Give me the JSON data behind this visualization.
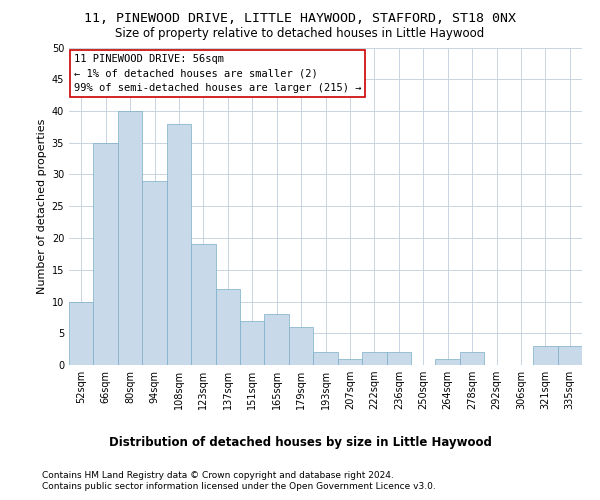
{
  "title_line1": "11, PINEWOOD DRIVE, LITTLE HAYWOOD, STAFFORD, ST18 0NX",
  "title_line2": "Size of property relative to detached houses in Little Haywood",
  "xlabel": "Distribution of detached houses by size in Little Haywood",
  "ylabel": "Number of detached properties",
  "footer_line1": "Contains HM Land Registry data © Crown copyright and database right 2024.",
  "footer_line2": "Contains public sector information licensed under the Open Government Licence v3.0.",
  "annotation_title": "11 PINEWOOD DRIVE: 56sqm",
  "annotation_line1": "← 1% of detached houses are smaller (2)",
  "annotation_line2": "99% of semi-detached houses are larger (215) →",
  "bar_labels": [
    "52sqm",
    "66sqm",
    "80sqm",
    "94sqm",
    "108sqm",
    "123sqm",
    "137sqm",
    "151sqm",
    "165sqm",
    "179sqm",
    "193sqm",
    "207sqm",
    "222sqm",
    "236sqm",
    "250sqm",
    "264sqm",
    "278sqm",
    "292sqm",
    "306sqm",
    "321sqm",
    "335sqm"
  ],
  "bar_values": [
    10,
    35,
    40,
    29,
    38,
    19,
    12,
    7,
    8,
    6,
    2,
    1,
    2,
    2,
    0,
    1,
    2,
    0,
    0,
    3,
    3
  ],
  "bar_color": "#c8d9ea",
  "bar_edge_color": "#7aaec8",
  "annotation_box_color": "#ffffff",
  "annotation_box_edge_color": "#cc0000",
  "background_color": "#ffffff",
  "grid_color": "#c8d4e0",
  "ylim": [
    0,
    50
  ],
  "yticks": [
    0,
    5,
    10,
    15,
    20,
    25,
    30,
    35,
    40,
    45,
    50
  ],
  "title_fontsize": 9.5,
  "subtitle_fontsize": 8.5,
  "ylabel_fontsize": 8,
  "tick_fontsize": 7,
  "annotation_fontsize": 7.5,
  "xlabel_fontsize": 8.5,
  "footer_fontsize": 6.5
}
